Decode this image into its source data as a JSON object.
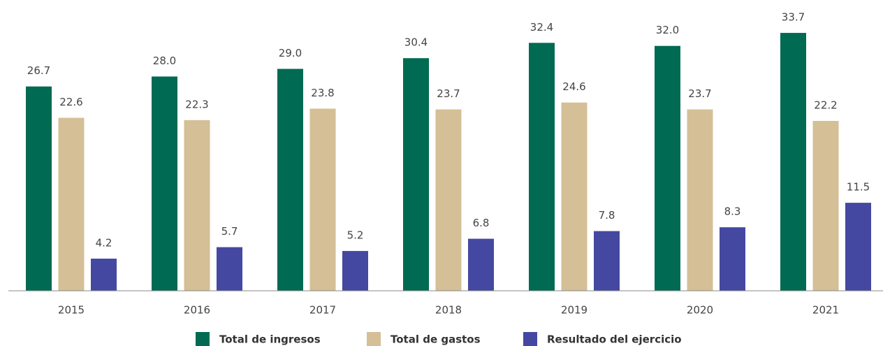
{
  "chart_data": {
    "type": "bar",
    "categories": [
      "2015",
      "2016",
      "2017",
      "2018",
      "2019",
      "2020",
      "2021"
    ],
    "series": [
      {
        "name": "Total de ingresos",
        "color": "#006a52",
        "values": [
          26.7,
          28.0,
          29.0,
          30.4,
          32.4,
          32.0,
          33.7
        ],
        "value_labels": [
          "26.7",
          "28.0",
          "29.0",
          "30.4",
          "32.4",
          "32.0",
          "33.7"
        ]
      },
      {
        "name": "Total de gastos",
        "color": "#d4bf96",
        "values": [
          22.6,
          22.3,
          23.8,
          23.7,
          24.6,
          23.7,
          22.2
        ],
        "value_labels": [
          "22.6",
          "22.3",
          "23.8",
          "23.7",
          "24.6",
          "23.7",
          "22.2"
        ]
      },
      {
        "name": "Resultado del ejercicio",
        "color": "#4548a0",
        "values": [
          4.2,
          5.7,
          5.2,
          6.8,
          7.8,
          8.3,
          11.5
        ],
        "value_labels": [
          "4.2",
          "5.7",
          "5.2",
          "6.8",
          "7.8",
          "8.3",
          "11.5"
        ]
      }
    ],
    "ylim": [
      0,
      38
    ],
    "legend": "bottom"
  }
}
